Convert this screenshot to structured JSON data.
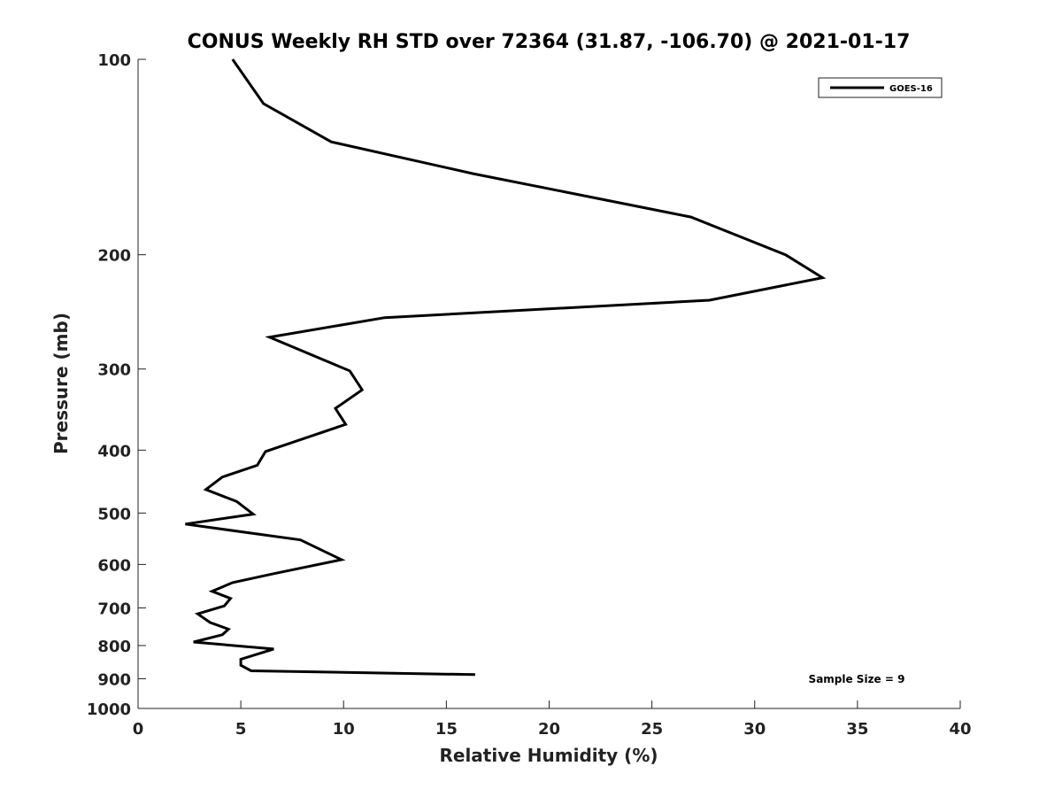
{
  "chart_data": {
    "type": "line",
    "title": "CONUS Weekly RH STD over 72364 (31.87, -106.70) @ 2021-01-17",
    "xlabel": "Relative Humidity (%)",
    "ylabel": "Pressure (mb)",
    "xlim": [
      0,
      40
    ],
    "ylim": [
      100,
      1000
    ],
    "yscale": "log",
    "y_reversed": true,
    "xticks": [
      0,
      5,
      10,
      15,
      20,
      25,
      30,
      35,
      40
    ],
    "yticks": [
      100,
      200,
      300,
      400,
      500,
      600,
      700,
      800,
      900,
      1000
    ],
    "grid": false,
    "legend_position": "top-right",
    "annotation": "Sample Size = 9",
    "series": [
      {
        "name": "GOES-16",
        "color": "#000000",
        "x": [
          4.6,
          6.1,
          9.4,
          16.3,
          26.9,
          31.5,
          33.3,
          27.8,
          12.0,
          6.4,
          10.3,
          10.9,
          9.6,
          10.1,
          6.2,
          5.8,
          4.1,
          3.3,
          4.8,
          5.6,
          2.3,
          7.9,
          9.9,
          6.6,
          4.6,
          3.6,
          4.5,
          4.2,
          2.9,
          3.5,
          4.4,
          4.1,
          2.7,
          6.6,
          5.0,
          5.0,
          5.5,
          16.4
        ],
        "y": [
          100,
          117,
          134,
          150,
          175,
          200,
          217,
          235,
          250,
          268,
          302,
          323,
          345,
          365,
          402,
          422,
          440,
          460,
          480,
          502,
          520,
          550,
          590,
          620,
          640,
          660,
          677,
          695,
          715,
          737,
          755,
          770,
          790,
          810,
          840,
          858,
          875,
          887
        ]
      }
    ]
  }
}
